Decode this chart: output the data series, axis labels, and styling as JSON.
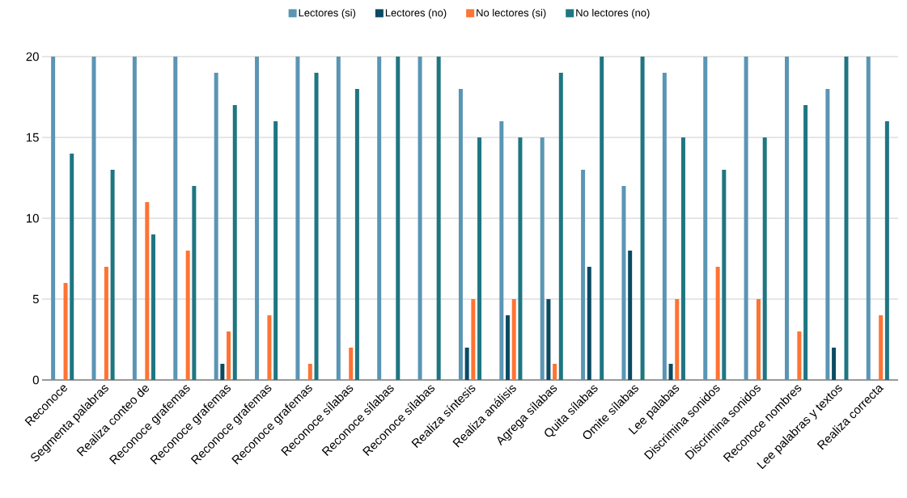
{
  "chart_data": {
    "type": "bar",
    "categories": [
      "Reconoce",
      "Segmenta palabras",
      "Realiza conteo de",
      "Reconoce grafemas",
      "Reconoce grafemas",
      "Reconoce grafemas",
      "Reconoce grafemas",
      "Reconoce sílabas",
      "Reconoce sílabas",
      "Reconoce sílabas",
      "Realiza síntesis",
      "Realiza análisis",
      "Agrega sílabas",
      "Quita sílabas",
      "Omite sílabas",
      "Lee palabas",
      "Discrimina sonidos",
      "Discrimina sonidos",
      "Reconoce nombres",
      "Lee palabras y textos",
      "Realiza correcta"
    ],
    "series": [
      {
        "name": "Lectores (si)",
        "color": "#5b95b4",
        "values": [
          20,
          20,
          20,
          20,
          19,
          20,
          20,
          20,
          20,
          20,
          18,
          16,
          15,
          13,
          12,
          19,
          20,
          20,
          20,
          18,
          20
        ]
      },
      {
        "name": "Lectores (no)",
        "color": "#0b4a63",
        "values": [
          0,
          0,
          0,
          0,
          1,
          0,
          0,
          0,
          0,
          0,
          2,
          4,
          5,
          7,
          8,
          1,
          0,
          0,
          0,
          2,
          0
        ]
      },
      {
        "name": "No lectores (si)",
        "color": "#ff7333",
        "values": [
          6,
          7,
          11,
          8,
          3,
          4,
          1,
          2,
          0,
          0,
          5,
          5,
          1,
          0,
          0,
          5,
          7,
          5,
          3,
          0,
          4
        ]
      },
      {
        "name": "No lectores (no)",
        "color": "#1f7682",
        "values": [
          14,
          13,
          9,
          12,
          17,
          16,
          19,
          18,
          20,
          20,
          15,
          15,
          19,
          20,
          20,
          15,
          13,
          15,
          17,
          20,
          16
        ]
      }
    ],
    "ylim": [
      0,
      20
    ],
    "yticks": [
      0,
      5,
      10,
      15,
      20
    ],
    "grid": "y",
    "legend": "top"
  }
}
